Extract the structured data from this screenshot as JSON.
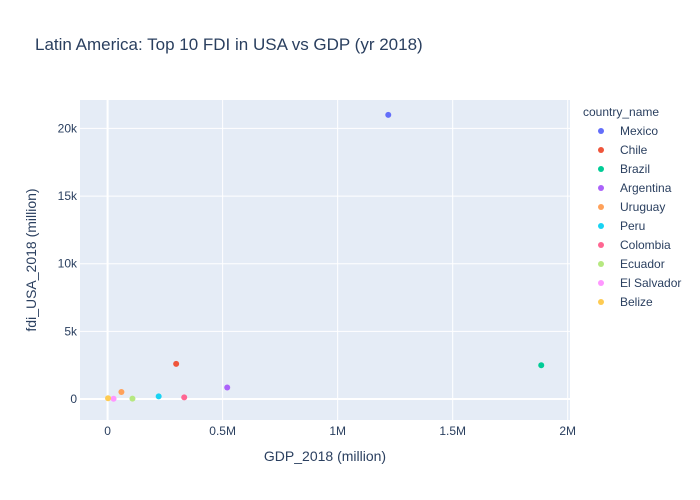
{
  "chart_data": {
    "type": "scatter",
    "title": "Latin America: Top 10 FDI in USA vs GDP (yr 2018)",
    "xlabel": "GDP_2018 (million)",
    "ylabel": "fdi_USA_2018 (million)",
    "xlim": [
      -120000,
      2010000
    ],
    "ylim": [
      -1550,
      22100
    ],
    "xticks": [
      {
        "value": 0,
        "label": "0"
      },
      {
        "value": 500000,
        "label": "0.5M"
      },
      {
        "value": 1000000,
        "label": "1M"
      },
      {
        "value": 1500000,
        "label": "1.5M"
      },
      {
        "value": 2000000,
        "label": "2M"
      }
    ],
    "yticks": [
      {
        "value": 0,
        "label": "0"
      },
      {
        "value": 5000,
        "label": "5k"
      },
      {
        "value": 10000,
        "label": "10k"
      },
      {
        "value": 15000,
        "label": "15k"
      },
      {
        "value": 20000,
        "label": "20k"
      }
    ],
    "grid": true,
    "plot_background": "#E5ECF6",
    "legend": {
      "title": "country_name",
      "placement": "right"
    },
    "series": [
      {
        "name": "Mexico",
        "color": "#636EFA",
        "points": [
          {
            "x": 1220000,
            "y": 21000
          }
        ]
      },
      {
        "name": "Chile",
        "color": "#EF553B",
        "points": [
          {
            "x": 298000,
            "y": 2600
          }
        ]
      },
      {
        "name": "Brazil",
        "color": "#00CC96",
        "points": [
          {
            "x": 1885000,
            "y": 2500
          }
        ]
      },
      {
        "name": "Argentina",
        "color": "#AB63FA",
        "points": [
          {
            "x": 520000,
            "y": 850
          }
        ]
      },
      {
        "name": "Uruguay",
        "color": "#FFA15A",
        "points": [
          {
            "x": 60000,
            "y": 520
          }
        ]
      },
      {
        "name": "Peru",
        "color": "#19D3F3",
        "points": [
          {
            "x": 222000,
            "y": 200
          }
        ]
      },
      {
        "name": "Colombia",
        "color": "#FF6692",
        "points": [
          {
            "x": 333000,
            "y": 120
          }
        ]
      },
      {
        "name": "Ecuador",
        "color": "#B6E880",
        "points": [
          {
            "x": 108000,
            "y": 30
          }
        ]
      },
      {
        "name": "El Salvador",
        "color": "#FF97FF",
        "points": [
          {
            "x": 26000,
            "y": 20
          }
        ]
      },
      {
        "name": "Belize",
        "color": "#FECB52",
        "points": [
          {
            "x": 2000,
            "y": 60
          }
        ]
      }
    ]
  }
}
